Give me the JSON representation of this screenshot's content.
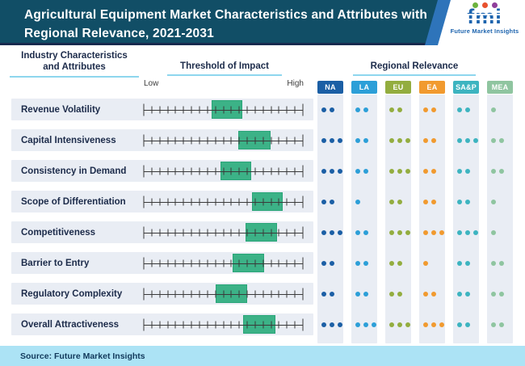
{
  "header": {
    "title_line1": "Agricultural Equipment Market Characteristics and Attributes with",
    "title_line2": "Regional Relevance, 2021-2031",
    "logo": {
      "word": "fmi",
      "tagline": "Future Market Insights",
      "dot_colors": [
        "#6cb33f",
        "#e8512e",
        "#903f9b"
      ]
    }
  },
  "section_headers": {
    "attributes_line1": "Industry Characteristics",
    "attributes_line2": "and Attributes",
    "threshold": "Threshold of Impact",
    "regional": "Regional Relevance",
    "scale_low": "Low",
    "scale_high": "High"
  },
  "regions": [
    {
      "label": "NA",
      "color": "#1b5fa5"
    },
    {
      "label": "LA",
      "color": "#2c9fd8"
    },
    {
      "label": "EU",
      "color": "#93ad3f"
    },
    {
      "label": "EA",
      "color": "#f19a2f"
    },
    {
      "label": "SA&P",
      "color": "#3db4c0"
    },
    {
      "label": "MEA",
      "color": "#8fc5a0"
    }
  ],
  "rows": [
    {
      "label": "Revenue Volatility",
      "band_start_pct": 42.5,
      "band_width_pct": 19.5,
      "relevance_dots": [
        2,
        2,
        2,
        2,
        2,
        1
      ]
    },
    {
      "label": "Capital Intensiveness",
      "band_start_pct": 59.5,
      "band_width_pct": 20.0,
      "relevance_dots": [
        3,
        2,
        3,
        2,
        3,
        2
      ]
    },
    {
      "label": "Consistency in Demand",
      "band_start_pct": 48.0,
      "band_width_pct": 19.5,
      "relevance_dots": [
        3,
        2,
        3,
        2,
        2,
        2
      ]
    },
    {
      "label": "Scope of Differentiation",
      "band_start_pct": 68.0,
      "band_width_pct": 19.5,
      "relevance_dots": [
        2,
        1,
        2,
        2,
        2,
        1
      ]
    },
    {
      "label": "Competitiveness",
      "band_start_pct": 64.0,
      "band_width_pct": 20.0,
      "relevance_dots": [
        3,
        2,
        3,
        3,
        3,
        1
      ]
    },
    {
      "label": "Barrier to Entry",
      "band_start_pct": 56.0,
      "band_width_pct": 19.5,
      "relevance_dots": [
        2,
        2,
        2,
        1,
        2,
        2
      ]
    },
    {
      "label": "Regulatory Complexity",
      "band_start_pct": 45.0,
      "band_width_pct": 20.0,
      "relevance_dots": [
        2,
        2,
        2,
        2,
        2,
        2
      ]
    },
    {
      "label": "Overall Attractiveness",
      "band_start_pct": 62.5,
      "band_width_pct": 20.0,
      "relevance_dots": [
        3,
        3,
        3,
        3,
        2,
        2
      ]
    }
  ],
  "scale": {
    "tick_count": 21,
    "green_band_color": "#3cb287"
  },
  "footer": {
    "source": "Source: Future Market Insights"
  },
  "chart_data": {
    "type": "table",
    "title": "Agricultural Equipment Market Characteristics and Attributes with Regional Relevance, 2021-2031",
    "columns": [
      "Industry Characteristics and Attributes",
      "Threshold of Impact (range on Low-High scale, %)",
      "NA",
      "LA",
      "EU",
      "EA",
      "SA&P",
      "MEA"
    ],
    "rows": [
      [
        "Revenue Volatility",
        "42-62",
        2,
        2,
        2,
        2,
        2,
        1
      ],
      [
        "Capital Intensiveness",
        "60-80",
        3,
        2,
        3,
        2,
        3,
        2
      ],
      [
        "Consistency in Demand",
        "48-68",
        3,
        2,
        3,
        2,
        2,
        2
      ],
      [
        "Scope of Differentiation",
        "68-88",
        2,
        1,
        2,
        2,
        2,
        1
      ],
      [
        "Competitiveness",
        "64-84",
        3,
        2,
        3,
        3,
        3,
        1
      ],
      [
        "Barrier to Entry",
        "56-76",
        2,
        2,
        2,
        1,
        2,
        2
      ],
      [
        "Regulatory Complexity",
        "45-65",
        2,
        2,
        2,
        2,
        2,
        2
      ],
      [
        "Overall Attractiveness",
        "63-83",
        3,
        3,
        3,
        3,
        2,
        2
      ]
    ],
    "legend": "Green band = threshold of impact on a Low-to-High tick scale; dots (1-3) = regional relevance per region",
    "source": "Future Market Insights"
  }
}
